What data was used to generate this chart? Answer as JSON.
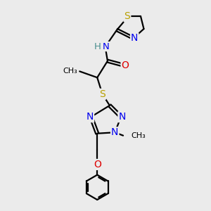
{
  "background_color": "#ebebeb",
  "atom_colors": {
    "S": "#b8a000",
    "N": "#0000ee",
    "O": "#dd0000",
    "C": "#000000",
    "H": "#4a8f8f"
  },
  "bond_color": "#000000",
  "bond_width": 1.6,
  "fig_size": [
    3.0,
    3.0
  ],
  "dpi": 100,
  "xlim": [
    0,
    10
  ],
  "ylim": [
    0,
    10
  ]
}
